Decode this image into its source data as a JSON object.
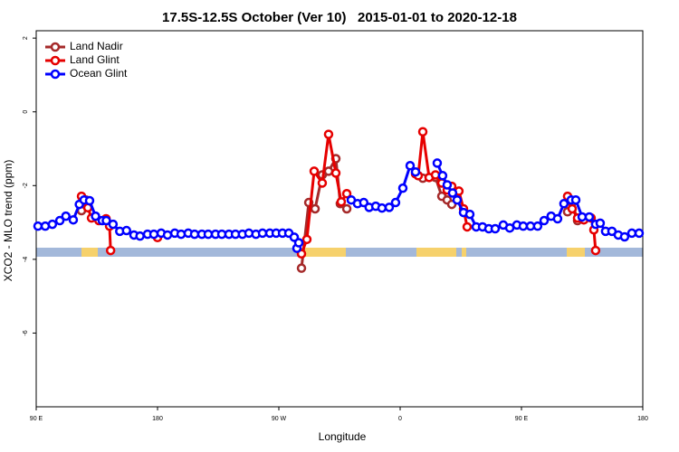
{
  "chart_data": {
    "type": "line",
    "title": "17.5S-12.5S October (Ver 10)   2015-01-01 to 2020-12-18",
    "x_label": "Longitude",
    "y_label": "XCO2 - MLO trend (ppm)",
    "xlim": [
      90,
      540
    ],
    "xticks": [
      {
        "value": 90,
        "label": "90 E"
      },
      180,
      {
        "value": 270,
        "label": "90 W"
      },
      0,
      {
        "value": 450,
        "label": "90 E"
      },
      {
        "value": 540,
        "label": "180"
      }
    ],
    "ylim": [
      -8,
      2.2
    ],
    "yticks": [
      2,
      0,
      -2,
      -4,
      -6
    ],
    "legend": "top-left",
    "series": [
      {
        "name": "Land Nadir",
        "color": "#a52a2a",
        "x": [
          123.6,
          126.9,
          null,
          286.8,
          292.2,
          296.9,
          302.2,
          306.9,
          312.3,
          315.6,
          320.4,
          null,
          373.4,
          376.8,
          381.5,
          386.2,
          390.9,
          394.9,
          398.3,
          null,
          484.2,
          487.6,
          491.6
        ],
        "values": [
          -2.68,
          -2.39,
          null,
          -4.24,
          -2.46,
          -2.63,
          -1.71,
          -1.61,
          -1.27,
          -2.49,
          -2.63,
          null,
          -1.73,
          -1.8,
          -1.78,
          -1.78,
          -2.29,
          -2.39,
          -2.51,
          null,
          -2.71,
          -2.46,
          -2.95
        ]
      },
      {
        "name": "Land Glint",
        "color": "#e60000",
        "x": [
          123.6,
          128.3,
          131,
          136.5,
          141.8,
          144.4,
          145.2,
          null,
          180,
          null,
          286.8,
          290.8,
          296.2,
          302.2,
          306.9,
          312.3,
          316.3,
          320.4,
          null,
          371.4,
          373.4,
          376.8,
          381.5,
          386.2,
          390.9,
          394.9,
          398.3,
          403.6,
          407,
          409.7,
          null,
          484.2,
          487.6,
          491.6,
          496.3,
          501.7,
          503.7,
          505
        ],
        "values": [
          -2.29,
          -2.6,
          -2.88,
          -2.95,
          -2.9,
          -3.1,
          -3.76,
          null,
          -3.41,
          null,
          -3.85,
          -3.46,
          -1.61,
          -1.93,
          -0.61,
          -1.66,
          -2.44,
          -2.22,
          null,
          -1.68,
          -1.73,
          -0.54,
          -1.78,
          -1.71,
          -1.93,
          -2.12,
          -2.02,
          -2.15,
          -2.63,
          -3.12,
          null,
          -2.29,
          -2.63,
          -2.88,
          -2.93,
          -2.88,
          -3.2,
          -3.76
        ]
      },
      {
        "name": "Ocean Glint",
        "color": "#0000ff",
        "x": [
          91.3,
          96.7,
          102,
          107.5,
          112,
          117.5,
          122,
          125.5,
          129.6,
          134,
          139,
          142,
          147,
          152,
          157,
          162.5,
          167,
          172.6,
          177.3,
          182.7,
          187.4,
          192.8,
          197.5,
          202.8,
          207.5,
          212.9,
          217.6,
          223,
          227.7,
          233,
          237.8,
          243,
          247.8,
          253,
          257.9,
          263.3,
          268,
          272.7,
          277.4,
          281.4,
          283.4,
          284.8,
          null,
          323.7,
          328.4,
          333,
          337,
          341.9,
          346.5,
          351.9,
          356.6,
          362,
          367.4,
          371.4,
          null,
          387.5,
          391.5,
          394.9,
          398.9,
          402.3,
          407,
          411.7,
          416.4,
          421.1,
          425.8,
          430.5,
          436.5,
          441.3,
          446.6,
          451.3,
          456.7,
          462,
          466.8,
          472,
          476.8,
          481.5,
          486.9,
          490.3,
          495,
          500.3,
          505,
          508.4,
          512.4,
          517.1,
          521.8,
          526.5,
          531.9,
          537.3
        ],
        "values": [
          -3.1,
          -3.1,
          -3.05,
          -2.95,
          -2.83,
          -2.93,
          -2.51,
          -2.39,
          -2.41,
          -2.83,
          -2.95,
          -2.95,
          -3.05,
          -3.24,
          -3.22,
          -3.34,
          -3.37,
          -3.32,
          -3.32,
          -3.29,
          -3.34,
          -3.29,
          -3.32,
          -3.29,
          -3.32,
          -3.32,
          -3.32,
          -3.32,
          -3.32,
          -3.32,
          -3.32,
          -3.32,
          -3.29,
          -3.32,
          -3.29,
          -3.29,
          -3.29,
          -3.29,
          -3.29,
          -3.4,
          -3.7,
          -3.55,
          null,
          -2.39,
          -2.49,
          -2.46,
          -2.59,
          -2.56,
          -2.61,
          -2.59,
          -2.46,
          -2.07,
          -1.46,
          -1.63,
          null,
          -1.39,
          -1.73,
          -1.98,
          -2.2,
          -2.39,
          -2.73,
          -2.78,
          -3.12,
          -3.12,
          -3.17,
          -3.17,
          -3.07,
          -3.15,
          -3.07,
          -3.1,
          -3.1,
          -3.1,
          -2.95,
          -2.83,
          -2.9,
          -2.49,
          -2.39,
          -2.39,
          -2.85,
          -2.85,
          -3.05,
          -3.02,
          -3.24,
          -3.24,
          -3.34,
          -3.39,
          -3.29,
          -3.29
        ]
      }
    ]
  }
}
